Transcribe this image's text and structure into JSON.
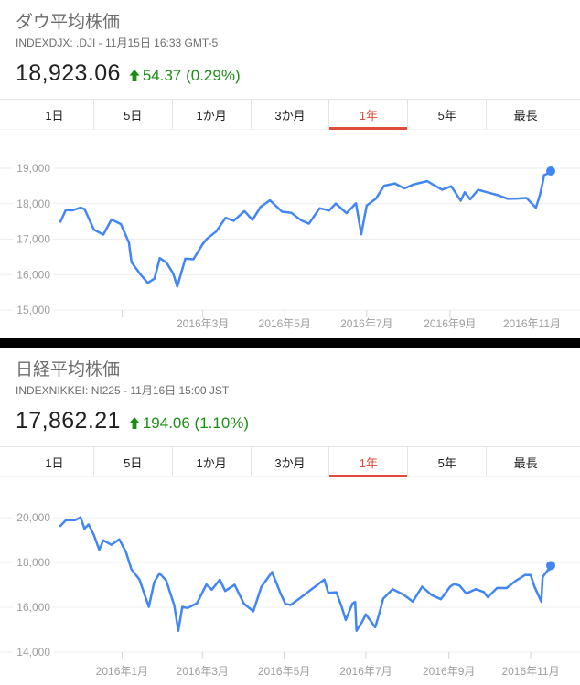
{
  "page": {
    "background": "#ffffff",
    "divider_color": "#000000",
    "accent_red": "#dd4b39",
    "line_blue": "#4285f4",
    "gain_green": "#1a8e13"
  },
  "panels": [
    {
      "title": "ダウ平均株価",
      "subtitle": "INDEXDJX: .DJI - 11月15日 16:33 GMT-5",
      "price": "18,923.06",
      "change_direction": "up",
      "change": "54.37 (0.29%)",
      "tabs": [
        {
          "label": "1日",
          "active": false
        },
        {
          "label": "5日",
          "active": false
        },
        {
          "label": "1か月",
          "active": false
        },
        {
          "label": "3か月",
          "active": false
        },
        {
          "label": "1年",
          "active": true
        },
        {
          "label": "5年",
          "active": false
        },
        {
          "label": "最長",
          "active": false
        }
      ]
    },
    {
      "title": "日経平均株価",
      "subtitle": "INDEXNIKKEI: NI225 - 11月16日 15:00 JST",
      "price": "17,862.21",
      "change_direction": "up",
      "change": "194.06 (1.10%)",
      "tabs": [
        {
          "label": "1日",
          "active": false
        },
        {
          "label": "5日",
          "active": false
        },
        {
          "label": "1か月",
          "active": false
        },
        {
          "label": "3か月",
          "active": false
        },
        {
          "label": "1年",
          "active": true
        },
        {
          "label": "5年",
          "active": false
        },
        {
          "label": "最長",
          "active": false
        }
      ]
    }
  ],
  "chart_data": [
    {
      "type": "line",
      "name": "ダウ平均株価",
      "line_color": "#4285f4",
      "x_start": "2015-11-16",
      "x_end": "2016-11-15",
      "ylim": [
        15000,
        19000
      ],
      "grid": true,
      "y_gridlines": [
        {
          "value": 19000,
          "label": "19,000"
        },
        {
          "value": 18000,
          "label": "18,000"
        },
        {
          "value": 17000,
          "label": "17,000"
        },
        {
          "value": 16000,
          "label": "16,000"
        },
        {
          "value": 15000,
          "label": "15,000"
        }
      ],
      "x_ticks": [
        {
          "date": "2016-01-01",
          "label": ""
        },
        {
          "date": "2016-03-01",
          "label": "2016年3月"
        },
        {
          "date": "2016-05-01",
          "label": "2016年5月"
        },
        {
          "date": "2016-07-01",
          "label": "2016年7月"
        },
        {
          "date": "2016-09-01",
          "label": "2016年9月"
        },
        {
          "date": "2016-11-01",
          "label": "2016年11月"
        }
      ],
      "points": [
        [
          "2015-11-16",
          17490
        ],
        [
          "2015-11-20",
          17824
        ],
        [
          "2015-11-25",
          17813
        ],
        [
          "2015-12-01",
          17888
        ],
        [
          "2015-12-04",
          17848
        ],
        [
          "2015-12-11",
          17265
        ],
        [
          "2015-12-18",
          17128
        ],
        [
          "2015-12-24",
          17552
        ],
        [
          "2015-12-31",
          17425
        ],
        [
          "2016-01-06",
          16906
        ],
        [
          "2016-01-08",
          16346
        ],
        [
          "2016-01-15",
          15988
        ],
        [
          "2016-01-20",
          15767
        ],
        [
          "2016-01-25",
          15885
        ],
        [
          "2016-01-29",
          16466
        ],
        [
          "2016-02-03",
          16337
        ],
        [
          "2016-02-08",
          16027
        ],
        [
          "2016-02-11",
          15660
        ],
        [
          "2016-02-17",
          16454
        ],
        [
          "2016-02-23",
          16431
        ],
        [
          "2016-03-01",
          16865
        ],
        [
          "2016-03-04",
          17007
        ],
        [
          "2016-03-11",
          17213
        ],
        [
          "2016-03-18",
          17602
        ],
        [
          "2016-03-24",
          17516
        ],
        [
          "2016-04-01",
          17793
        ],
        [
          "2016-04-07",
          17542
        ],
        [
          "2016-04-13",
          17908
        ],
        [
          "2016-04-20",
          18096
        ],
        [
          "2016-04-29",
          17774
        ],
        [
          "2016-05-06",
          17740
        ],
        [
          "2016-05-13",
          17535
        ],
        [
          "2016-05-19",
          17435
        ],
        [
          "2016-05-27",
          17873
        ],
        [
          "2016-06-03",
          17807
        ],
        [
          "2016-06-08",
          18005
        ],
        [
          "2016-06-16",
          17733
        ],
        [
          "2016-06-23",
          18011
        ],
        [
          "2016-06-27",
          17140
        ],
        [
          "2016-07-01",
          17949
        ],
        [
          "2016-07-08",
          18147
        ],
        [
          "2016-07-14",
          18506
        ],
        [
          "2016-07-22",
          18571
        ],
        [
          "2016-07-29",
          18432
        ],
        [
          "2016-08-05",
          18543
        ],
        [
          "2016-08-15",
          18636
        ],
        [
          "2016-08-26",
          18395
        ],
        [
          "2016-09-02",
          18492
        ],
        [
          "2016-09-09",
          18085
        ],
        [
          "2016-09-12",
          18325
        ],
        [
          "2016-09-16",
          18124
        ],
        [
          "2016-09-22",
          18392
        ],
        [
          "2016-09-30",
          18308
        ],
        [
          "2016-10-07",
          18240
        ],
        [
          "2016-10-14",
          18138
        ],
        [
          "2016-10-21",
          18146
        ],
        [
          "2016-10-28",
          18161
        ],
        [
          "2016-11-04",
          17888
        ],
        [
          "2016-11-07",
          18260
        ],
        [
          "2016-11-09",
          18590
        ],
        [
          "2016-11-10",
          18808
        ],
        [
          "2016-11-14",
          18869
        ],
        [
          "2016-11-15",
          18923
        ]
      ]
    },
    {
      "type": "line",
      "name": "日経平均株価",
      "line_color": "#4285f4",
      "x_start": "2015-11-16",
      "x_end": "2016-11-16",
      "ylim": [
        14000,
        20000
      ],
      "grid": true,
      "y_gridlines": [
        {
          "value": 20000,
          "label": "20,000"
        },
        {
          "value": 18000,
          "label": "18,000"
        },
        {
          "value": 16000,
          "label": "16,000"
        },
        {
          "value": 14000,
          "label": "14,000"
        }
      ],
      "x_ticks": [
        {
          "date": "2016-01-01",
          "label": "2016年1月"
        },
        {
          "date": "2016-03-01",
          "label": "2016年3月"
        },
        {
          "date": "2016-05-01",
          "label": "2016年5月"
        },
        {
          "date": "2016-07-01",
          "label": "2016年7月"
        },
        {
          "date": "2016-09-01",
          "label": "2016年9月"
        },
        {
          "date": "2016-11-01",
          "label": "2016年11月"
        }
      ],
      "points": [
        [
          "2015-11-16",
          19631
        ],
        [
          "2015-11-20",
          19880
        ],
        [
          "2015-11-27",
          19884
        ],
        [
          "2015-12-01",
          20012
        ],
        [
          "2015-12-04",
          19504
        ],
        [
          "2015-12-07",
          19698
        ],
        [
          "2015-12-11",
          19230
        ],
        [
          "2015-12-15",
          18565
        ],
        [
          "2015-12-18",
          18987
        ],
        [
          "2015-12-24",
          18789
        ],
        [
          "2015-12-30",
          19033
        ],
        [
          "2016-01-04",
          18450
        ],
        [
          "2016-01-08",
          17698
        ],
        [
          "2016-01-14",
          17241
        ],
        [
          "2016-01-21",
          16017
        ],
        [
          "2016-01-25",
          17110
        ],
        [
          "2016-01-29",
          17518
        ],
        [
          "2016-02-03",
          17191
        ],
        [
          "2016-02-09",
          16085
        ],
        [
          "2016-02-12",
          14953
        ],
        [
          "2016-02-15",
          16022
        ],
        [
          "2016-02-19",
          15967
        ],
        [
          "2016-02-26",
          16188
        ],
        [
          "2016-03-04",
          17015
        ],
        [
          "2016-03-08",
          16783
        ],
        [
          "2016-03-14",
          17234
        ],
        [
          "2016-03-18",
          16725
        ],
        [
          "2016-03-25",
          17003
        ],
        [
          "2016-04-01",
          16164
        ],
        [
          "2016-04-08",
          15822
        ],
        [
          "2016-04-14",
          16911
        ],
        [
          "2016-04-22",
          17572
        ],
        [
          "2016-04-28",
          16666
        ],
        [
          "2016-05-02",
          16147
        ],
        [
          "2016-05-06",
          16107
        ],
        [
          "2016-05-13",
          16412
        ],
        [
          "2016-05-20",
          16736
        ],
        [
          "2016-05-31",
          17235
        ],
        [
          "2016-06-03",
          16642
        ],
        [
          "2016-06-09",
          16668
        ],
        [
          "2016-06-13",
          16019
        ],
        [
          "2016-06-16",
          15434
        ],
        [
          "2016-06-21",
          16169
        ],
        [
          "2016-06-23",
          16238
        ],
        [
          "2016-06-24",
          14952
        ],
        [
          "2016-06-28",
          15323
        ],
        [
          "2016-07-01",
          15682
        ],
        [
          "2016-07-08",
          15106
        ],
        [
          "2016-07-11",
          15708
        ],
        [
          "2016-07-14",
          16385
        ],
        [
          "2016-07-21",
          16810
        ],
        [
          "2016-07-29",
          16569
        ],
        [
          "2016-08-02",
          16391
        ],
        [
          "2016-08-05",
          16254
        ],
        [
          "2016-08-12",
          16920
        ],
        [
          "2016-08-19",
          16546
        ],
        [
          "2016-08-26",
          16360
        ],
        [
          "2016-09-02",
          16926
        ],
        [
          "2016-09-05",
          17037
        ],
        [
          "2016-09-09",
          16966
        ],
        [
          "2016-09-14",
          16614
        ],
        [
          "2016-09-21",
          16807
        ],
        [
          "2016-09-27",
          16683
        ],
        [
          "2016-09-30",
          16450
        ],
        [
          "2016-10-07",
          16860
        ],
        [
          "2016-10-14",
          16856
        ],
        [
          "2016-10-21",
          17185
        ],
        [
          "2016-10-28",
          17446
        ],
        [
          "2016-11-01",
          17442
        ],
        [
          "2016-11-04",
          16905
        ],
        [
          "2016-11-09",
          16252
        ],
        [
          "2016-11-10",
          17345
        ],
        [
          "2016-11-14",
          17673
        ],
        [
          "2016-11-15",
          17668
        ],
        [
          "2016-11-16",
          17862
        ]
      ]
    }
  ]
}
